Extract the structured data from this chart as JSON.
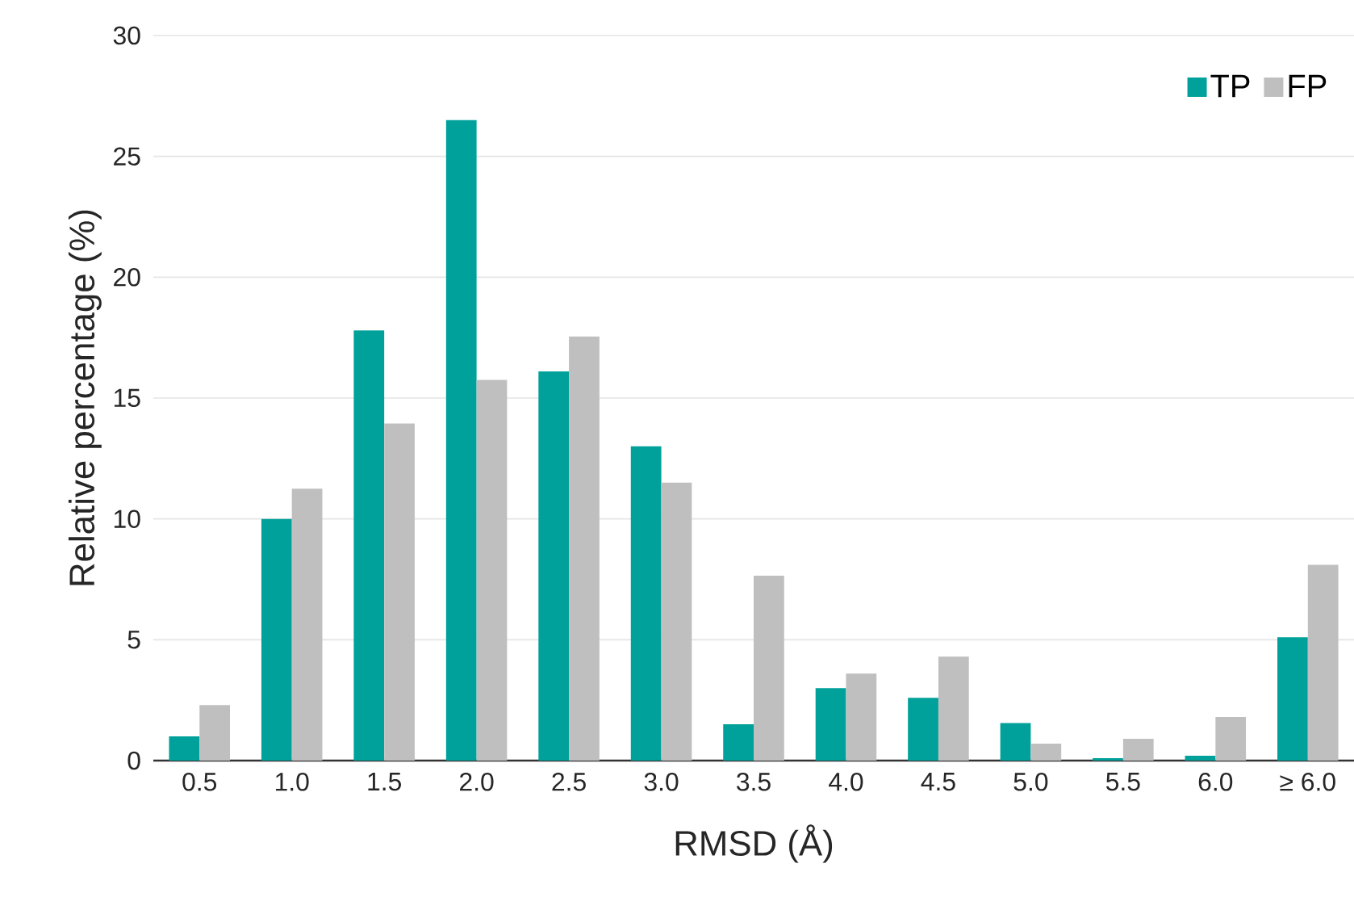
{
  "chart_data": {
    "type": "bar",
    "xlabel": "RMSD (Å)",
    "ylabel": "Relative percentage (%)",
    "categories": [
      "0.5",
      "1.0",
      "1.5",
      "2.0",
      "2.5",
      "3.0",
      "3.5",
      "4.0",
      "4.5",
      "5.0",
      "5.5",
      "6.0",
      "≥ 6.0"
    ],
    "series": [
      {
        "name": "TP",
        "color": "#00a19a",
        "values": [
          1.0,
          10.0,
          17.8,
          26.5,
          16.1,
          13.0,
          1.5,
          3.0,
          2.6,
          1.55,
          0.1,
          0.2,
          5.1
        ]
      },
      {
        "name": "FP",
        "color": "#bfbfbf",
        "values": [
          2.3,
          11.25,
          13.95,
          15.75,
          17.55,
          11.5,
          7.65,
          3.6,
          4.3,
          0.7,
          0.9,
          1.8,
          8.1
        ]
      }
    ],
    "ylim": [
      0,
      30
    ],
    "yticks": [
      0,
      5,
      10,
      15,
      20,
      25,
      30
    ],
    "grid": "y",
    "legend": "top right"
  }
}
